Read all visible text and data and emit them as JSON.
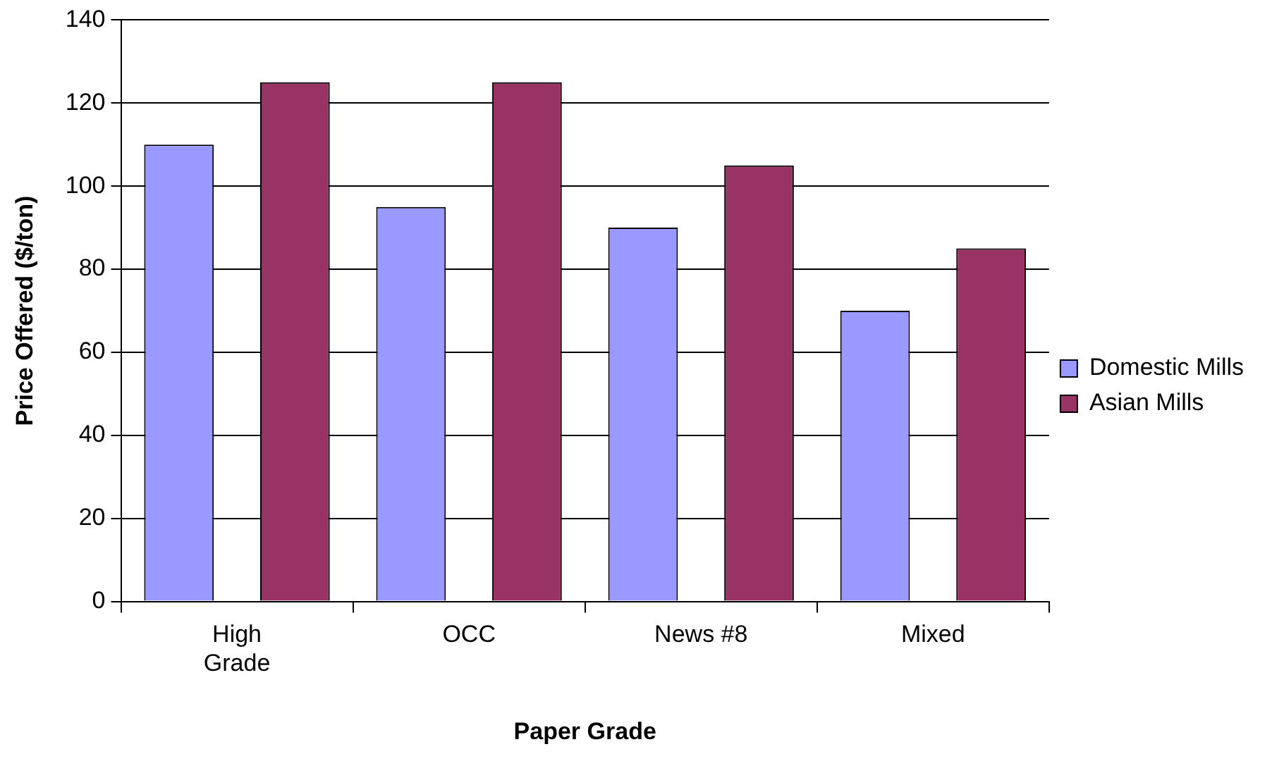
{
  "chart_data": {
    "type": "bar",
    "xlabel": "Paper Grade",
    "ylabel": "Price Offered ($/ton)",
    "categories": [
      "High Grade",
      "OCC",
      "News #8",
      "Mixed"
    ],
    "series": [
      {
        "name": "Domestic Mills",
        "color": "#9999ff",
        "values": [
          110,
          95,
          90,
          70
        ]
      },
      {
        "name": "Asian Mills",
        "color": "#993366",
        "values": [
          125,
          125,
          105,
          85
        ]
      }
    ],
    "ylim": [
      0,
      140
    ],
    "yticks": [
      0,
      20,
      40,
      60,
      80,
      100,
      120,
      140
    ],
    "grid": "y",
    "legend": "right"
  }
}
